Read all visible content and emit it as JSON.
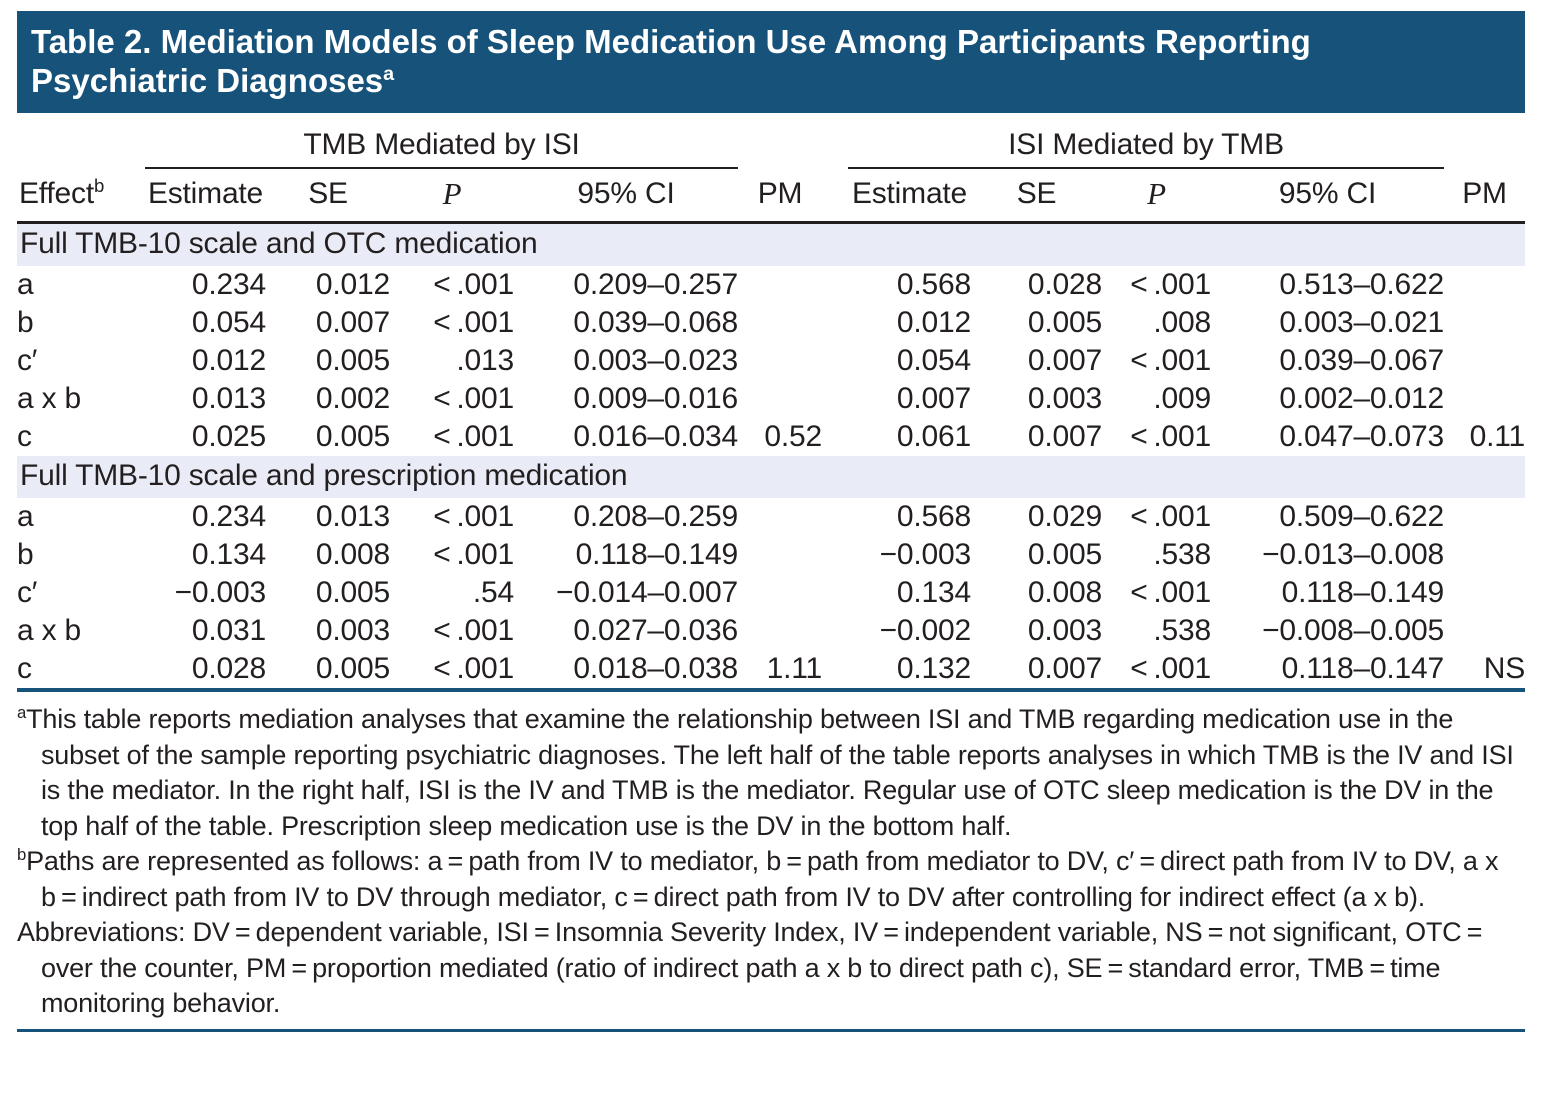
{
  "header": {
    "title_line1": "Table 2. Mediation Models of Sleep Medication Use Among Participants Reporting",
    "title_line2": "Psychiatric Diagnoses",
    "title_sup": "a"
  },
  "table": {
    "spanners": [
      "TMB Mediated by ISI",
      "ISI Mediated by TMB"
    ],
    "col_headers": {
      "effect": "Effect",
      "effect_sup": "b",
      "estimate": "Estimate",
      "se": "SE",
      "p": "P",
      "ci": "95% CI",
      "pm": "PM"
    },
    "sections": [
      {
        "label": "Full TMB-10 scale and OTC medication",
        "rows": [
          {
            "effect": "a",
            "left": [
              "0.234",
              "0.012",
              "< .001",
              "0.209–0.257",
              ""
            ],
            "right": [
              "0.568",
              "0.028",
              "< .001",
              "0.513–0.622",
              ""
            ]
          },
          {
            "effect": "b",
            "left": [
              "0.054",
              "0.007",
              "< .001",
              "0.039–0.068",
              ""
            ],
            "right": [
              "0.012",
              "0.005",
              ".008",
              "0.003–0.021",
              ""
            ]
          },
          {
            "effect": "c′",
            "left": [
              "0.012",
              "0.005",
              ".013",
              "0.003–0.023",
              ""
            ],
            "right": [
              "0.054",
              "0.007",
              "< .001",
              "0.039–0.067",
              ""
            ]
          },
          {
            "effect": "a x b",
            "left": [
              "0.013",
              "0.002",
              "< .001",
              "0.009–0.016",
              ""
            ],
            "right": [
              "0.007",
              "0.003",
              ".009",
              "0.002–0.012",
              ""
            ]
          },
          {
            "effect": "c",
            "left": [
              "0.025",
              "0.005",
              "< .001",
              "0.016–0.034",
              "0.52"
            ],
            "right": [
              "0.061",
              "0.007",
              "< .001",
              "0.047–0.073",
              "0.11"
            ]
          }
        ]
      },
      {
        "label": "Full TMB-10 scale and prescription medication",
        "rows": [
          {
            "effect": "a",
            "left": [
              "0.234",
              "0.013",
              "< .001",
              "0.208–0.259",
              ""
            ],
            "right": [
              "0.568",
              "0.029",
              "< .001",
              "0.509–0.622",
              ""
            ]
          },
          {
            "effect": "b",
            "left": [
              "0.134",
              "0.008",
              "< .001",
              "0.118–0.149",
              ""
            ],
            "right": [
              "−0.003",
              "0.005",
              ".538",
              "−0.013–0.008",
              ""
            ]
          },
          {
            "effect": "c′",
            "left": [
              "−0.003",
              "0.005",
              ".54",
              "−0.014–0.007",
              ""
            ],
            "right": [
              "0.134",
              "0.008",
              "< .001",
              "0.118–0.149",
              ""
            ]
          },
          {
            "effect": "a x b",
            "left": [
              "0.031",
              "0.003",
              "< .001",
              "0.027–0.036",
              ""
            ],
            "right": [
              "−0.002",
              "0.003",
              ".538",
              "−0.008–0.005",
              ""
            ]
          },
          {
            "effect": "c",
            "left": [
              "0.028",
              "0.005",
              "< .001",
              "0.018–0.038",
              "1.11"
            ],
            "right": [
              "0.132",
              "0.007",
              "< .001",
              "0.118–0.147",
              "NS"
            ]
          }
        ]
      }
    ]
  },
  "footnotes": [
    {
      "marker": "a",
      "text": "This table reports mediation analyses that examine the relationship between ISI and TMB regarding medication use in the subset of the sample reporting psychiatric diagnoses. The left half of the table reports analyses in which TMB is the IV and ISI is the mediator. In the right half, ISI is the IV and TMB is the mediator. Regular use of OTC sleep medication is the DV in the top half of the table. Prescription sleep medication use is the DV in the bottom half."
    },
    {
      "marker": "b",
      "text": "Paths are represented as follows: a = path from IV to mediator, b = path from mediator to DV, c′ = direct path from IV to DV, a x b = indirect path from IV to DV through mediator, c = direct path from IV to DV after controlling for indirect effect (a x b)."
    },
    {
      "marker": "",
      "text": "Abbreviations: DV = dependent variable, ISI = Insomnia Severity Index, IV = independent variable, NS = not significant, OTC = over the counter, PM = proportion mediated (ratio of indirect path a x b to direct path c), SE = standard error, TMB = time monitoring behavior."
    }
  ],
  "colors": {
    "header_blue": "#16527A",
    "section_band": "#E9EBF6",
    "text": "#231F20"
  }
}
